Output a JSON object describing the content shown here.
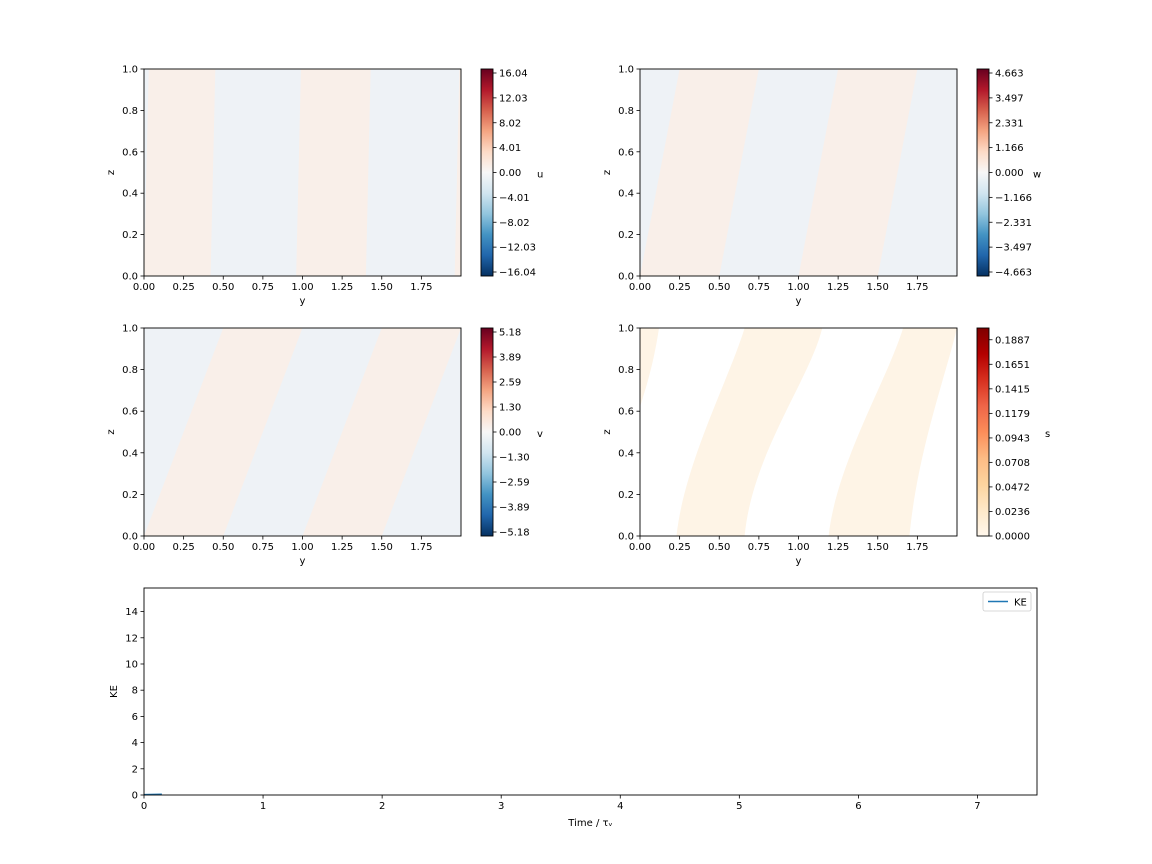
{
  "colors": {
    "rdbu": [
      "#053061",
      "#2166ac",
      "#4393c3",
      "#92c5de",
      "#d1e5f0",
      "#f7f7f7",
      "#fddbc7",
      "#f4a582",
      "#d6604d",
      "#b2182b",
      "#67001f"
    ],
    "orrd": [
      "#fff7ec",
      "#fee8c8",
      "#fdd49e",
      "#fdbb84",
      "#fc8d59",
      "#ef6548",
      "#d7301f",
      "#b30000",
      "#7f0000"
    ],
    "u_positive": "#f9efe9",
    "u_negative": "#eef2f6",
    "s_band": "#fef4e6",
    "ke_line": "#1f77b4"
  },
  "chart_data": [
    {
      "type": "heatmap",
      "field": "u",
      "xlabel": "y",
      "ylabel": "z",
      "xlim": [
        0,
        2
      ],
      "ylim": [
        0,
        1
      ],
      "xticks": [
        "0.00",
        "0.25",
        "0.50",
        "0.75",
        "1.00",
        "1.25",
        "1.50",
        "1.75"
      ],
      "yticks": [
        "0.0",
        "0.2",
        "0.4",
        "0.6",
        "0.8",
        "1.0"
      ],
      "colorbar_label": "u",
      "colorbar_ticks": [
        "16.04",
        "12.03",
        "8.02",
        "4.01",
        "0.00",
        "−4.01",
        "−8.02",
        "−12.03",
        "−16.04"
      ],
      "colormap": "rdbu",
      "pattern": {
        "orientation": "near-vertical",
        "sign_changes_y": [
          0.0,
          0.42,
          0.96,
          1.4,
          1.96
        ]
      }
    },
    {
      "type": "heatmap",
      "field": "w",
      "xlabel": "y",
      "ylabel": "z",
      "xlim": [
        0,
        2
      ],
      "ylim": [
        0,
        1
      ],
      "xticks": [
        "0.00",
        "0.25",
        "0.50",
        "0.75",
        "1.00",
        "1.25",
        "1.50",
        "1.75"
      ],
      "yticks": [
        "0.0",
        "0.2",
        "0.4",
        "0.6",
        "0.8",
        "1.0"
      ],
      "colorbar_label": "w",
      "colorbar_ticks": [
        "4.663",
        "3.497",
        "2.331",
        "1.166",
        "0.000",
        "−1.166",
        "−2.331",
        "−3.497",
        "−4.663"
      ],
      "colormap": "rdbu",
      "pattern": {
        "orientation": "diagonal",
        "phase_bottom": [
          0.0,
          0.45,
          1.0,
          1.45
        ],
        "phase_top": [
          0.25,
          0.75,
          1.25,
          1.75
        ]
      }
    },
    {
      "type": "heatmap",
      "field": "v",
      "xlabel": "y",
      "ylabel": "z",
      "xlim": [
        0,
        2
      ],
      "ylim": [
        0,
        1
      ],
      "xticks": [
        "0.00",
        "0.25",
        "0.50",
        "0.75",
        "1.00",
        "1.25",
        "1.50",
        "1.75"
      ],
      "yticks": [
        "0.0",
        "0.2",
        "0.4",
        "0.6",
        "0.8",
        "1.0"
      ],
      "colorbar_label": "v",
      "colorbar_ticks": [
        "5.18",
        "3.89",
        "2.59",
        "1.30",
        "0.00",
        "−1.30",
        "−2.59",
        "−3.89",
        "−5.18"
      ],
      "colormap": "rdbu",
      "pattern": {
        "orientation": "diagonal",
        "phase_bottom": [
          0.0,
          0.3,
          0.75,
          1.25
        ],
        "phase_top": [
          0.0,
          0.5,
          1.0,
          1.5
        ]
      }
    },
    {
      "type": "heatmap",
      "field": "s",
      "xlabel": "y",
      "ylabel": "z",
      "xlim": [
        0,
        2
      ],
      "ylim": [
        0,
        1
      ],
      "xticks": [
        "0.00",
        "0.25",
        "0.50",
        "0.75",
        "1.00",
        "1.25",
        "1.50",
        "1.75"
      ],
      "yticks": [
        "0.0",
        "0.2",
        "0.4",
        "0.6",
        "0.8",
        "1.0"
      ],
      "colorbar_label": "s",
      "colorbar_ticks": [
        "0.1887",
        "0.1651",
        "0.1415",
        "0.1179",
        "0.0943",
        "0.0708",
        "0.0472",
        "0.0236",
        "0.0000"
      ],
      "colormap": "orrd",
      "bands": [
        {
          "bottom": [
            0.23,
            0.66
          ],
          "top": [
            0.66,
            1.15
          ]
        },
        {
          "bottom": [
            1.19,
            1.7
          ],
          "top": [
            1.66,
            2.0
          ]
        }
      ],
      "corner_band": {
        "top_right_y": 0.12,
        "left_z": 0.62
      }
    },
    {
      "type": "line",
      "xlabel": "Time / τᵥ",
      "ylabel": "KE",
      "xlim": [
        0,
        7.5
      ],
      "ylim": [
        0,
        15.8
      ],
      "xticks": [
        "0",
        "1",
        "2",
        "3",
        "4",
        "5",
        "6",
        "7"
      ],
      "yticks": [
        "0",
        "2",
        "4",
        "6",
        "8",
        "10",
        "12",
        "14"
      ],
      "legend": "top-right",
      "series": [
        {
          "name": "KE",
          "x": [
            0,
            0.05,
            0.1,
            0.15
          ],
          "y": [
            0.03,
            0.04,
            0.05,
            0.06
          ]
        }
      ]
    }
  ]
}
